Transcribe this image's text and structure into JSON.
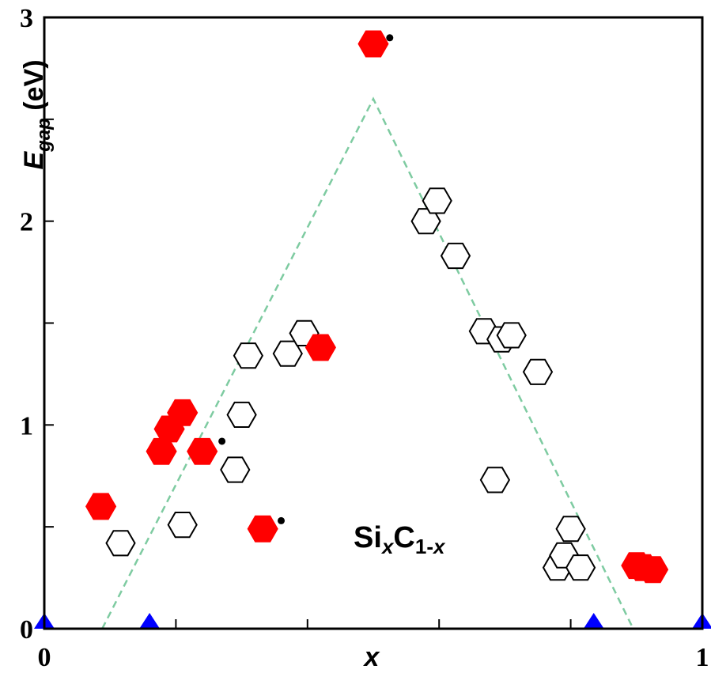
{
  "chart_data": {
    "type": "scatter",
    "xlabel": "x",
    "ylabel": {
      "main": "E",
      "sub": "gap",
      "unit": " (eV)"
    },
    "xlim": [
      0,
      1
    ],
    "ylim": [
      0,
      3
    ],
    "x_ticks": [
      0,
      0.2,
      0.4,
      0.6,
      0.8,
      1
    ],
    "x_tick_labels": [
      "0",
      "",
      "",
      "",
      "",
      "1"
    ],
    "y_ticks": [
      0,
      0.5,
      1,
      1.5,
      2,
      2.5,
      3
    ],
    "y_tick_labels": [
      "0",
      "",
      "1",
      "",
      "2",
      "",
      "3"
    ],
    "grid": false,
    "annotation": {
      "base1": "Si",
      "sub1": "x",
      "base2": "C",
      "sub2": "1-",
      "sub3": "x",
      "x": 0.47,
      "y": 0.4
    },
    "colors": {
      "filled": "#ff0000",
      "triangle": "#0000ff",
      "guide": "#7ecba1",
      "open_stroke": "#000000"
    },
    "series": [
      {
        "marker": "open-hexagon",
        "points": [
          [
            0.116,
            0.42
          ],
          [
            0.21,
            0.51
          ],
          [
            0.29,
            0.78
          ],
          [
            0.3,
            1.05
          ],
          [
            0.31,
            1.34
          ],
          [
            0.37,
            1.35
          ],
          [
            0.395,
            1.45
          ],
          [
            0.58,
            2.0
          ],
          [
            0.597,
            2.1
          ],
          [
            0.625,
            1.83
          ],
          [
            0.668,
            1.46
          ],
          [
            0.685,
            0.73
          ],
          [
            0.695,
            1.42
          ],
          [
            0.71,
            1.44
          ],
          [
            0.75,
            1.26
          ],
          [
            0.8,
            0.49
          ],
          [
            0.78,
            0.3
          ],
          [
            0.79,
            0.36
          ],
          [
            0.815,
            0.3
          ]
        ]
      },
      {
        "marker": "filled-hexagon",
        "points": [
          [
            0.086,
            0.6
          ],
          [
            0.178,
            0.87
          ],
          [
            0.19,
            0.98
          ],
          [
            0.21,
            1.06
          ],
          [
            0.24,
            0.87
          ],
          [
            0.332,
            0.49
          ],
          [
            0.42,
            1.38
          ],
          [
            0.5,
            2.87
          ],
          [
            0.9,
            0.31
          ],
          [
            0.91,
            0.3
          ],
          [
            0.925,
            0.29
          ]
        ]
      },
      {
        "marker": "triangle",
        "points": [
          [
            0,
            0.02
          ],
          [
            0.16,
            0.02
          ],
          [
            0.835,
            0.02
          ],
          [
            1.0,
            0.02
          ]
        ]
      },
      {
        "marker": "dot",
        "points": [
          [
            0.27,
            0.92
          ],
          [
            0.36,
            0.53
          ],
          [
            0.525,
            2.9
          ]
        ]
      },
      {
        "marker": "dashed-line",
        "points": [
          [
            0.088,
            0
          ],
          [
            0.5,
            2.6
          ],
          [
            0.895,
            0
          ]
        ]
      }
    ]
  }
}
